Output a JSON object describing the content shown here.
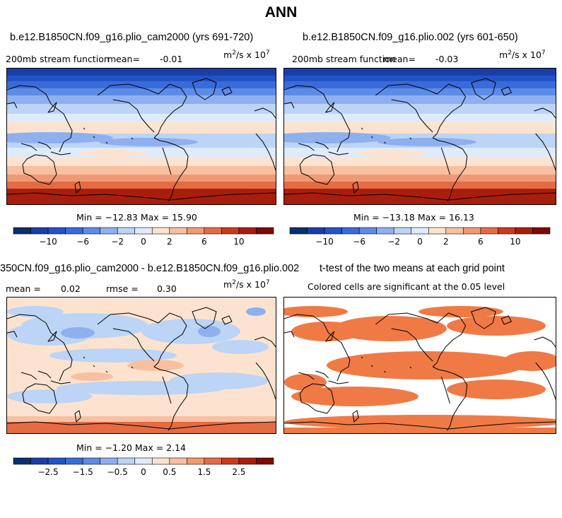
{
  "figure": {
    "title": "ANN",
    "colors": {
      "ramp": [
        "#08306b",
        "#1a3ea8",
        "#2453c7",
        "#3a6bdb",
        "#5d8ce6",
        "#8eb0ef",
        "#bcd4f5",
        "#deebfb",
        "#fde3cf",
        "#f7c0a1",
        "#ef9a74",
        "#e56b45",
        "#cc3a1e",
        "#a81e0d",
        "#7d0a04"
      ],
      "significant": "#f07a45"
    }
  },
  "chart_data": [
    {
      "type": "heatmap",
      "name": "panel-1",
      "title": "b.e12.B1850CN.f09_g16.plio_cam2000 (yrs 691-720)",
      "variable": "200mb stream function",
      "mean_label": "mean=",
      "mean_value": "-0.01",
      "units": "m²/s x 10⁷",
      "units_base": "m",
      "units_exp1": "2",
      "units_mid": "/s x 10",
      "units_exp2": "7",
      "min_max_text": "Min = −12.83  Max =  15.90",
      "min": -12.83,
      "max": 15.9,
      "colorbar_levels": [
        -14,
        -12,
        -10,
        -8,
        -6,
        -4,
        -2,
        0,
        0,
        2,
        4,
        6,
        8,
        10,
        12,
        14
      ],
      "colorbar_tick_labels": [
        "−10",
        "−6",
        "−2",
        "0",
        "2",
        "6",
        "10"
      ]
    },
    {
      "type": "heatmap",
      "name": "panel-2",
      "title": "b.e12.B1850CN.f09_g16.plio.002 (yrs 601-650)",
      "variable": "200mb stream function",
      "mean_label": "mean=",
      "mean_value": "-0.03",
      "units_base": "m",
      "units_exp1": "2",
      "units_mid": "/s x 10",
      "units_exp2": "7",
      "min_max_text": "Min = −13.18  Max =  16.13",
      "min": -13.18,
      "max": 16.13,
      "colorbar_tick_labels": [
        "−10",
        "−6",
        "−2",
        "0",
        "2",
        "6",
        "10"
      ]
    },
    {
      "type": "heatmap",
      "name": "panel-3-difference",
      "title": "350CN.f09_g16.plio_cam2000 - b.e12.B1850CN.f09_g16.plio.002",
      "mean_label": "mean =",
      "mean_value": "0.02",
      "rmse_label": "rmse =",
      "rmse_value": "0.30",
      "units_base": "m",
      "units_exp1": "2",
      "units_mid": "/s x 10",
      "units_exp2": "7",
      "min_max_text": "Min = −1.20  Max =   2.14",
      "min": -1.2,
      "max": 2.14,
      "colorbar_tick_labels": [
        "−2.5",
        "−1.5",
        "−0.5",
        "0",
        "0.5",
        "1.5",
        "2.5"
      ]
    },
    {
      "type": "heatmap",
      "name": "panel-4-ttest",
      "title": "t-test of the two means at each grid point",
      "subtitle": "Colored cells are significant at the 0.05 level"
    }
  ]
}
